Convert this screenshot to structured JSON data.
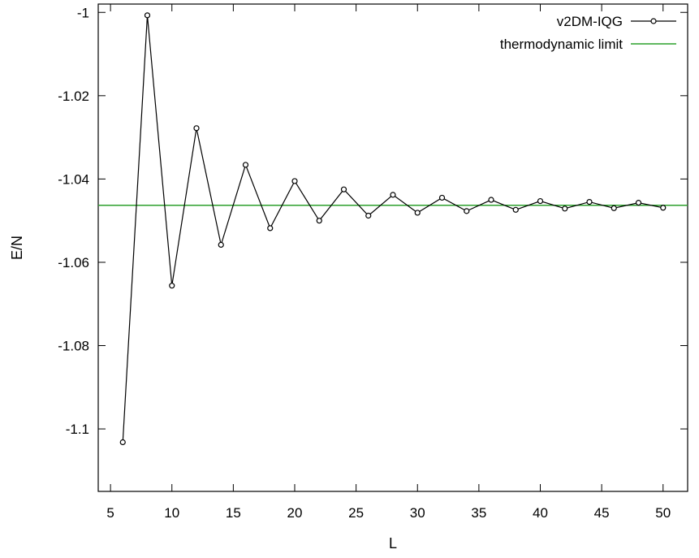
{
  "chart_data": {
    "type": "line",
    "xlabel": "L",
    "ylabel": "E/N",
    "xlim": [
      4,
      52
    ],
    "ylim": [
      -1.115,
      -0.998
    ],
    "xticks": [
      5,
      10,
      15,
      20,
      25,
      30,
      35,
      40,
      45,
      50
    ],
    "xtick_labels": [
      "5",
      "10",
      "15",
      "20",
      "25",
      "30",
      "35",
      "40",
      "45",
      "50"
    ],
    "yticks": [
      -1.1,
      -1.08,
      -1.06,
      -1.04,
      -1.02,
      -1
    ],
    "ytick_labels": [
      "-1.1",
      "-1.08",
      "-1.06",
      "-1.04",
      "-1.02",
      "-1"
    ],
    "grid": false,
    "legend_position": "top-right",
    "series": [
      {
        "name": "v2DM-IQG",
        "color": "#000000",
        "marker": "open-circle",
        "x": [
          6,
          8,
          10,
          12,
          14,
          16,
          18,
          20,
          22,
          24,
          26,
          28,
          30,
          32,
          34,
          36,
          38,
          40,
          42,
          44,
          46,
          48,
          50
        ],
        "y": [
          -1.1032,
          -1.0007,
          -1.0656,
          -1.0278,
          -1.0558,
          -1.0366,
          -1.0518,
          -1.0405,
          -1.05,
          -1.0425,
          -1.0488,
          -1.0438,
          -1.0481,
          -1.0445,
          -1.0477,
          -1.045,
          -1.0474,
          -1.0453,
          -1.0471,
          -1.0455,
          -1.047,
          -1.0457,
          -1.0469
        ]
      },
      {
        "name": "thermodynamic limit",
        "color": "#2ca02c",
        "type": "hline",
        "y": -1.0463
      }
    ]
  }
}
